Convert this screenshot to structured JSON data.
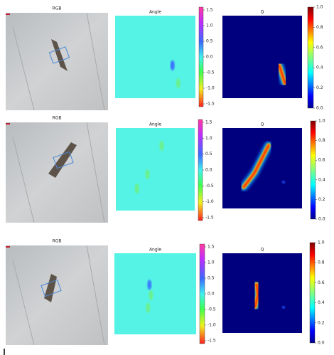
{
  "rows": [
    {
      "rgb_title": "RGB",
      "angle_title": "Angle",
      "q_title": "Q"
    },
    {
      "rgb_title": "RGB",
      "angle_title": "Angle",
      "q_title": "Q"
    },
    {
      "rgb_title": "RGB",
      "angle_title": "Angle",
      "q_title": "Q"
    }
  ],
  "angle_colorbar_ticks": [
    "1.5",
    "1.0",
    "0.5",
    "0.0",
    "-0.5",
    "-1.0",
    "-1.5"
  ],
  "q_colorbar_ticks": [
    "1.0",
    "0.8",
    "0.6",
    "0.4",
    "0.2",
    "0.0"
  ]
}
